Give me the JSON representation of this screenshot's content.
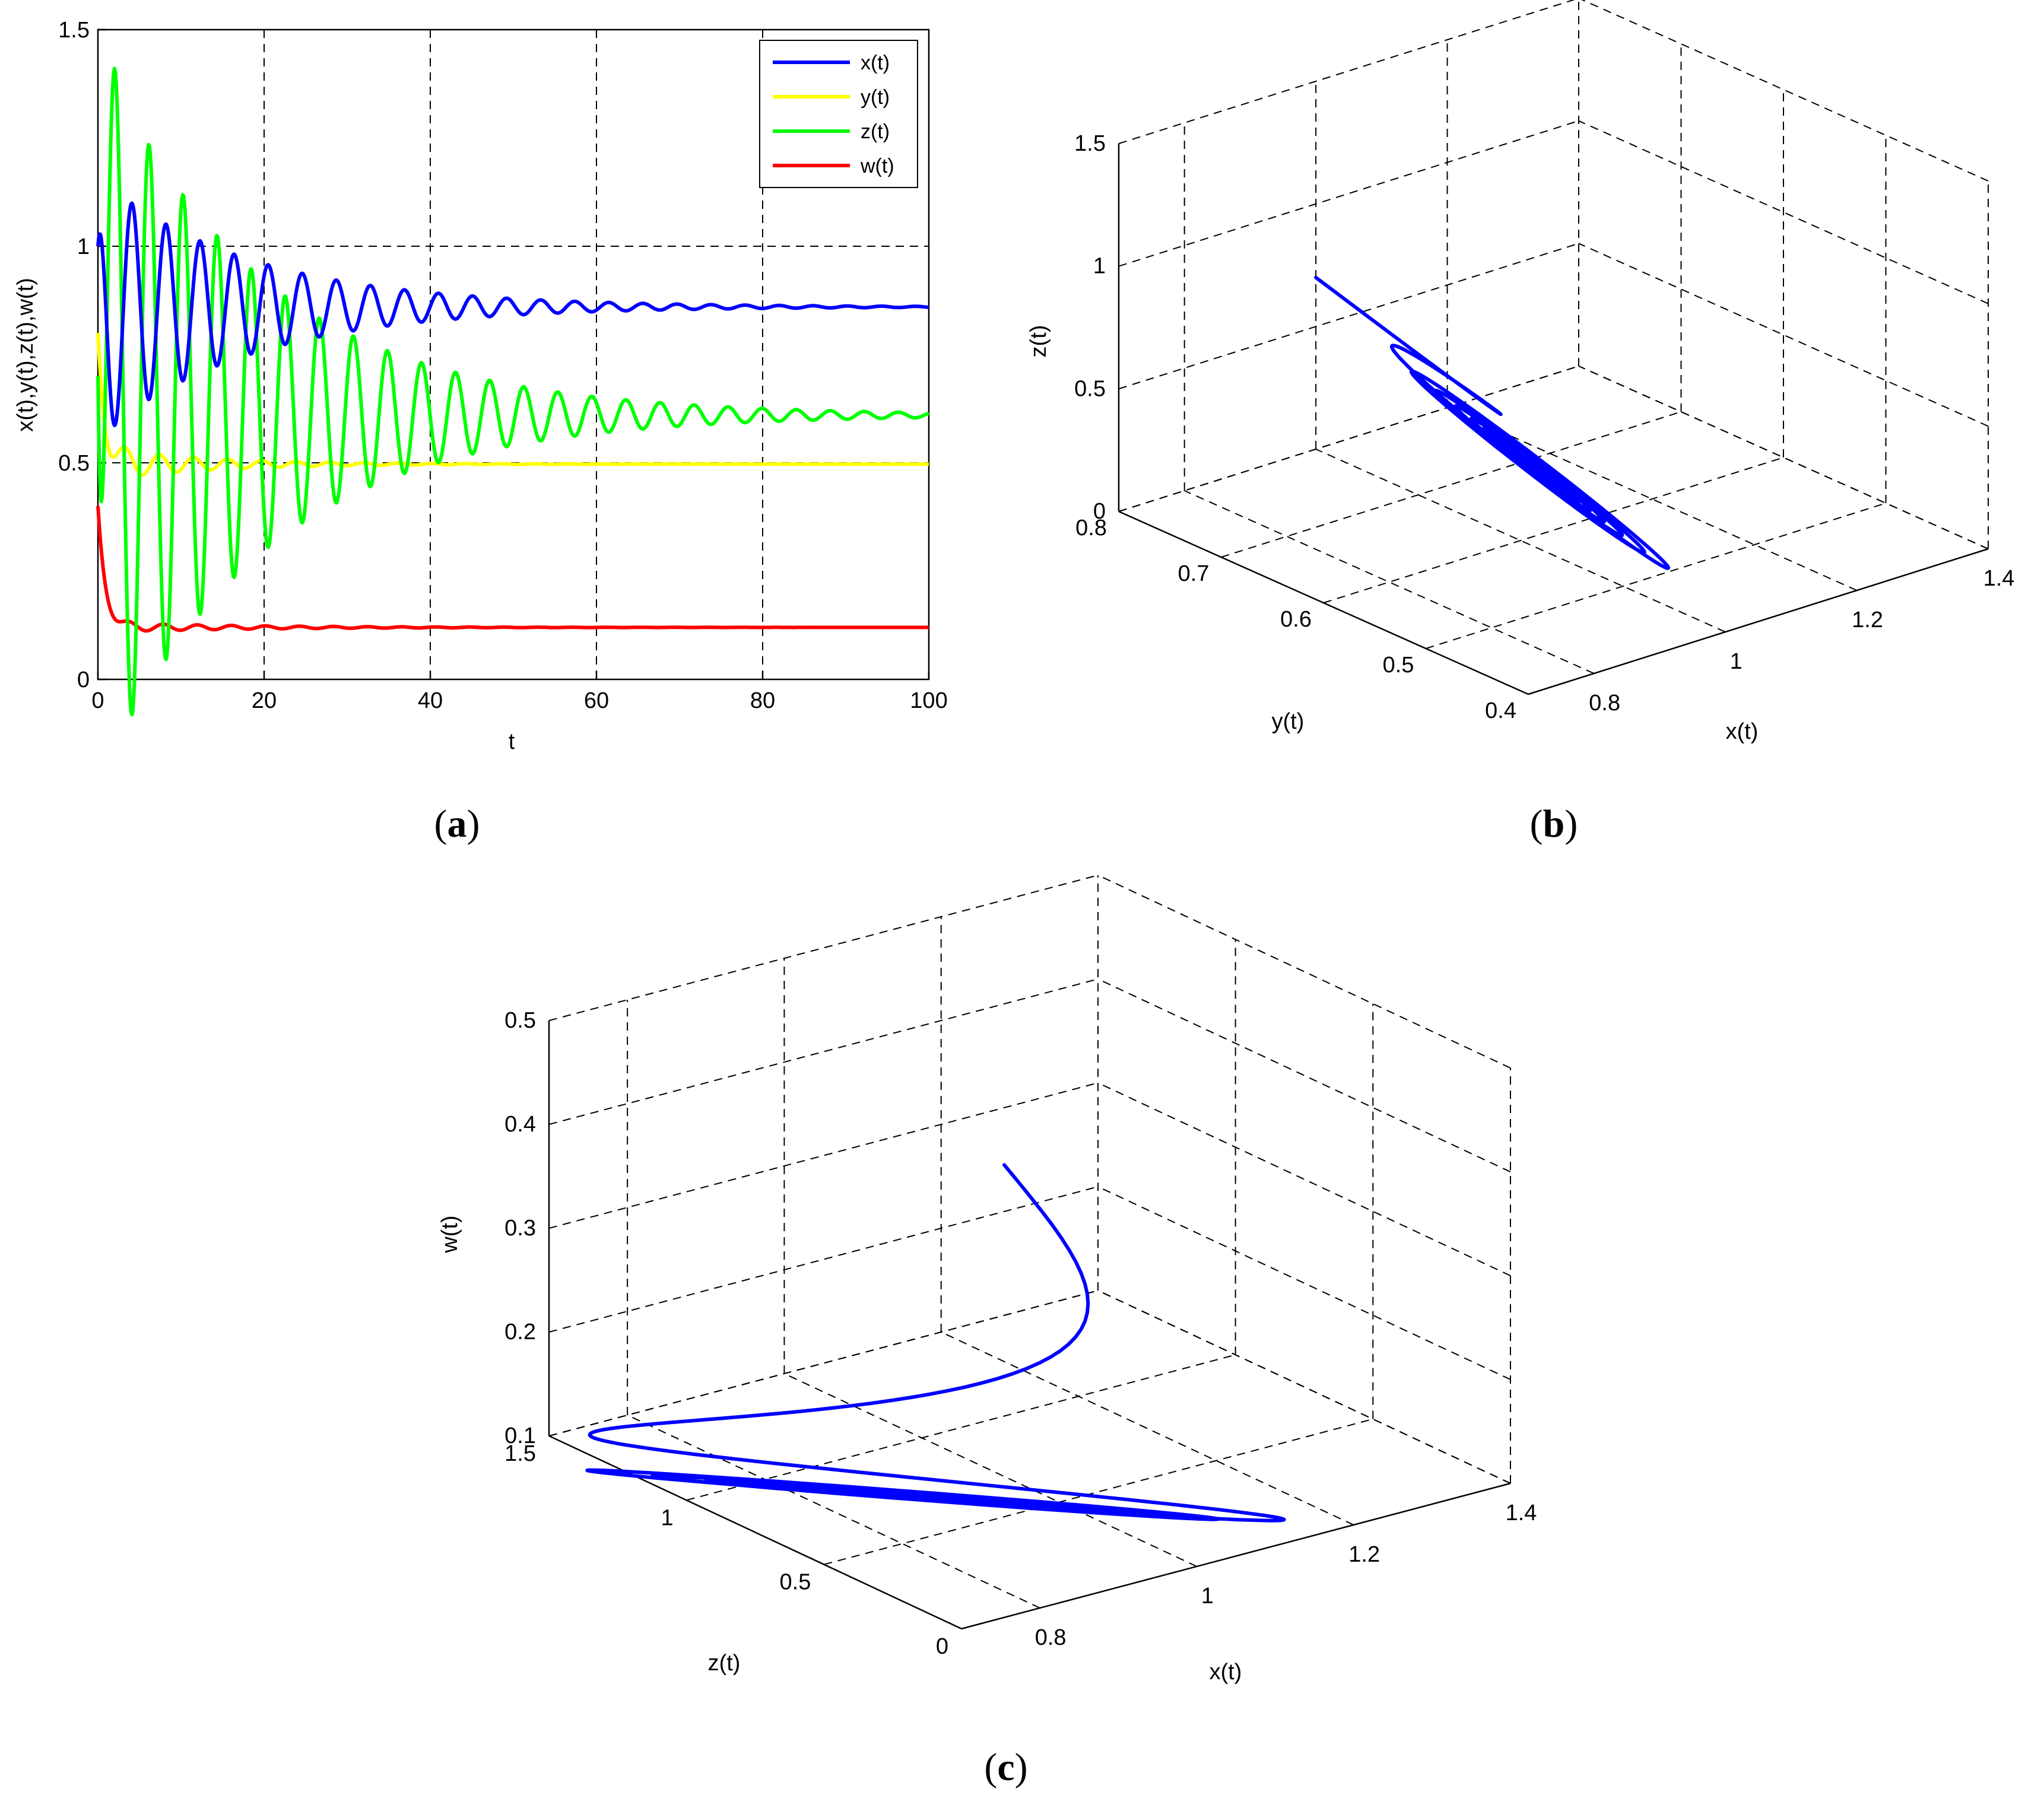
{
  "chart_data": [
    {
      "panel": "a",
      "type": "line",
      "title": "",
      "xlabel": "t",
      "ylabel": "x(t),y(t),z(t),w(t)",
      "xlim": [
        0,
        100
      ],
      "ylim": [
        0,
        1.5
      ],
      "xticks": [
        "0",
        "20",
        "40",
        "60",
        "80",
        "100"
      ],
      "yticks": [
        "0",
        "0.5",
        "1",
        "1.5"
      ],
      "grid": true,
      "legend_position": "top-right",
      "series": [
        {
          "name": "x(t)",
          "color": "#0000ff",
          "x0": 1.0,
          "eq": 0.86,
          "amp": 0.3,
          "decay": 0.055,
          "period": 4.1,
          "phase": 0.0,
          "transient": 0,
          "tdecay": 1
        },
        {
          "name": "y(t)",
          "color": "#ffff00",
          "x0": 0.8,
          "eq": 0.497,
          "amp": 0.04,
          "decay": 0.08,
          "period": 4.1,
          "phase": 1.2,
          "transient": 0.3,
          "tdecay": 0.9
        },
        {
          "name": "z(t)",
          "color": "#00ff00",
          "x0": 0.7,
          "eq": 0.61,
          "amp": 0.85,
          "decay": 0.05,
          "period": 4.1,
          "phase": 3.14,
          "transient": 0,
          "tdecay": 1
        },
        {
          "name": "w(t)",
          "color": "#ff0000",
          "x0": 0.4,
          "eq": 0.12,
          "amp": 0.012,
          "decay": 0.06,
          "period": 4.1,
          "phase": 0.5,
          "transient": 0.28,
          "tdecay": 0.9
        }
      ]
    },
    {
      "panel": "b",
      "type": "line3d",
      "title": "",
      "xlabel": "x(t)",
      "ylabel": "y(t)",
      "zlabel": "z(t)",
      "xlim": [
        0.7,
        1.4
      ],
      "ylim": [
        0.4,
        0.8
      ],
      "zlim": [
        0,
        1.5
      ],
      "xticks": [
        "0.8",
        "1",
        "1.2",
        "1.4"
      ],
      "yticks": [
        "0.4",
        "0.5",
        "0.6",
        "0.7",
        "0.8"
      ],
      "zticks": [
        "0",
        "0.5",
        "1",
        "1.5"
      ],
      "grid": true,
      "equilibrium": [
        0.86,
        0.497,
        0.61
      ],
      "start": [
        1.0,
        0.8,
        0.7
      ]
    },
    {
      "panel": "c",
      "type": "line3d",
      "title": "",
      "xlabel": "x(t)",
      "ylabel": "z(t)",
      "zlabel": "w(t)",
      "xlim": [
        0.7,
        1.4
      ],
      "ylim": [
        0,
        1.5
      ],
      "zlim": [
        0.1,
        0.5
      ],
      "xticks": [
        "0.8",
        "1",
        "1.2",
        "1.4"
      ],
      "yticks": [
        "0",
        "0.5",
        "1",
        "1.5"
      ],
      "zticks": [
        "0.1",
        "0.2",
        "0.3",
        "0.4",
        "0.5"
      ],
      "grid": true,
      "equilibrium": [
        0.86,
        0.61,
        0.12
      ],
      "start": [
        1.0,
        0.7,
        0.4
      ]
    }
  ],
  "panel_labels": {
    "a": {
      "open": "(",
      "letter": "a",
      "close": ")"
    },
    "b": {
      "open": "(",
      "letter": "b",
      "close": ")"
    },
    "c": {
      "open": "(",
      "letter": "c",
      "close": ")"
    }
  }
}
